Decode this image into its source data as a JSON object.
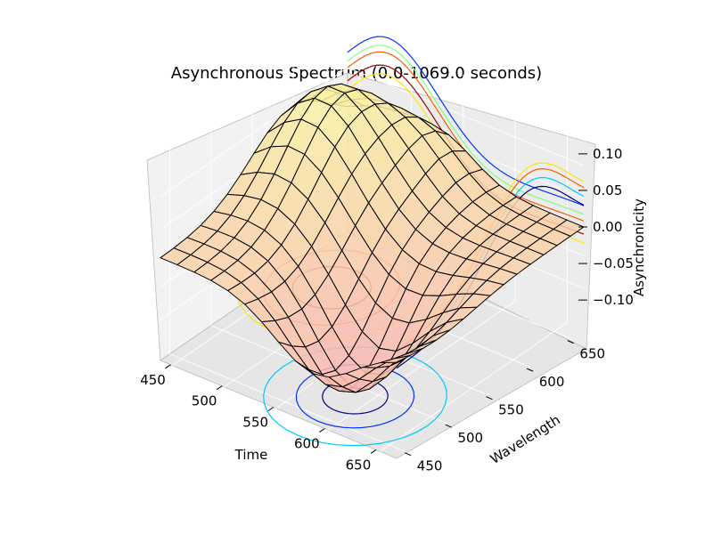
{
  "chart_data": {
    "type": "surface3d",
    "title": "Asynchronous Spectrum (0.0-1069.0 seconds)",
    "xlabel": "Time",
    "ylabel": "Wavelength",
    "zlabel": "Asynchronicity",
    "x_ticks": [
      "450",
      "500",
      "550",
      "600",
      "650"
    ],
    "y_ticks": [
      "450",
      "500",
      "550",
      "600",
      "650"
    ],
    "z_ticks": [
      "0.10",
      "0.05",
      "0.00",
      "−0.05",
      "−0.10"
    ],
    "xlim": [
      440,
      670
    ],
    "ylim": [
      440,
      670
    ],
    "zlim": [
      -0.14,
      0.14
    ],
    "grid": true,
    "colormap": "autumn / jet contours",
    "surface_features": [
      {
        "x": 470,
        "y": 615,
        "z": 0.13,
        "kind": "peak"
      },
      {
        "x": 605,
        "y": 480,
        "z": -0.13,
        "kind": "trough"
      }
    ]
  }
}
